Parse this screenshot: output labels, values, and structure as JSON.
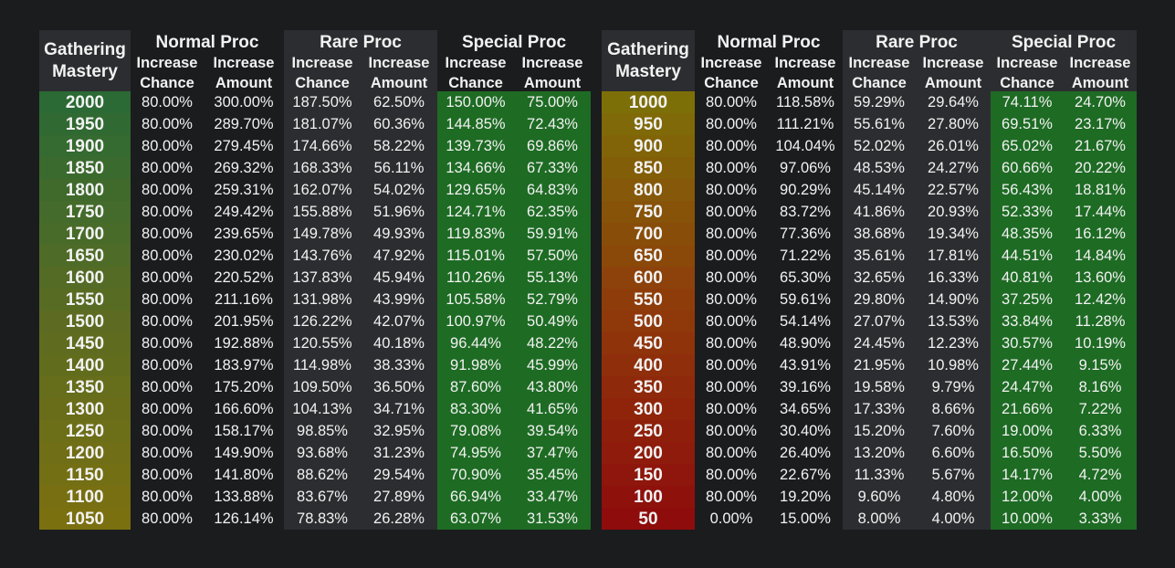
{
  "headers": {
    "mastery_line1": "Gathering",
    "mastery_line2": "Mastery",
    "normal_proc": "Normal Proc",
    "rare_proc": "Rare Proc",
    "special_proc": "Special Proc",
    "sub_chance_1": "Increase",
    "sub_chance_2": "Chance",
    "sub_amount_1": "Increase",
    "sub_amount_2": "Amount"
  },
  "colors": {
    "background": "#1b1c1e",
    "header_shade": "#2c2d30",
    "rare_column": "#2c2d30",
    "special_column": "#1e6b24",
    "left_mastery_gradient": [
      "#2b6a34",
      "#7a7010"
    ],
    "right_mastery_gradient": [
      "#7d6f08",
      "#8e0c0c"
    ]
  },
  "left_table": {
    "rows": [
      [
        "2000",
        "80.00%",
        "300.00%",
        "187.50%",
        "62.50%",
        "150.00%",
        "75.00%"
      ],
      [
        "1950",
        "80.00%",
        "289.70%",
        "181.07%",
        "60.36%",
        "144.85%",
        "72.43%"
      ],
      [
        "1900",
        "80.00%",
        "279.45%",
        "174.66%",
        "58.22%",
        "139.73%",
        "69.86%"
      ],
      [
        "1850",
        "80.00%",
        "269.32%",
        "168.33%",
        "56.11%",
        "134.66%",
        "67.33%"
      ],
      [
        "1800",
        "80.00%",
        "259.31%",
        "162.07%",
        "54.02%",
        "129.65%",
        "64.83%"
      ],
      [
        "1750",
        "80.00%",
        "249.42%",
        "155.88%",
        "51.96%",
        "124.71%",
        "62.35%"
      ],
      [
        "1700",
        "80.00%",
        "239.65%",
        "149.78%",
        "49.93%",
        "119.83%",
        "59.91%"
      ],
      [
        "1650",
        "80.00%",
        "230.02%",
        "143.76%",
        "47.92%",
        "115.01%",
        "57.50%"
      ],
      [
        "1600",
        "80.00%",
        "220.52%",
        "137.83%",
        "45.94%",
        "110.26%",
        "55.13%"
      ],
      [
        "1550",
        "80.00%",
        "211.16%",
        "131.98%",
        "43.99%",
        "105.58%",
        "52.79%"
      ],
      [
        "1500",
        "80.00%",
        "201.95%",
        "126.22%",
        "42.07%",
        "100.97%",
        "50.49%"
      ],
      [
        "1450",
        "80.00%",
        "192.88%",
        "120.55%",
        "40.18%",
        "96.44%",
        "48.22%"
      ],
      [
        "1400",
        "80.00%",
        "183.97%",
        "114.98%",
        "38.33%",
        "91.98%",
        "45.99%"
      ],
      [
        "1350",
        "80.00%",
        "175.20%",
        "109.50%",
        "36.50%",
        "87.60%",
        "43.80%"
      ],
      [
        "1300",
        "80.00%",
        "166.60%",
        "104.13%",
        "34.71%",
        "83.30%",
        "41.65%"
      ],
      [
        "1250",
        "80.00%",
        "158.17%",
        "98.85%",
        "32.95%",
        "79.08%",
        "39.54%"
      ],
      [
        "1200",
        "80.00%",
        "149.90%",
        "93.68%",
        "31.23%",
        "74.95%",
        "37.47%"
      ],
      [
        "1150",
        "80.00%",
        "141.80%",
        "88.62%",
        "29.54%",
        "70.90%",
        "35.45%"
      ],
      [
        "1100",
        "80.00%",
        "133.88%",
        "83.67%",
        "27.89%",
        "66.94%",
        "33.47%"
      ],
      [
        "1050",
        "80.00%",
        "126.14%",
        "78.83%",
        "26.28%",
        "63.07%",
        "31.53%"
      ]
    ]
  },
  "right_table": {
    "rows": [
      [
        "1000",
        "80.00%",
        "118.58%",
        "59.29%",
        "29.64%",
        "74.11%",
        "24.70%"
      ],
      [
        "950",
        "80.00%",
        "111.21%",
        "55.61%",
        "27.80%",
        "69.51%",
        "23.17%"
      ],
      [
        "900",
        "80.00%",
        "104.04%",
        "52.02%",
        "26.01%",
        "65.02%",
        "21.67%"
      ],
      [
        "850",
        "80.00%",
        "97.06%",
        "48.53%",
        "24.27%",
        "60.66%",
        "20.22%"
      ],
      [
        "800",
        "80.00%",
        "90.29%",
        "45.14%",
        "22.57%",
        "56.43%",
        "18.81%"
      ],
      [
        "750",
        "80.00%",
        "83.72%",
        "41.86%",
        "20.93%",
        "52.33%",
        "17.44%"
      ],
      [
        "700",
        "80.00%",
        "77.36%",
        "38.68%",
        "19.34%",
        "48.35%",
        "16.12%"
      ],
      [
        "650",
        "80.00%",
        "71.22%",
        "35.61%",
        "17.81%",
        "44.51%",
        "14.84%"
      ],
      [
        "600",
        "80.00%",
        "65.30%",
        "32.65%",
        "16.33%",
        "40.81%",
        "13.60%"
      ],
      [
        "550",
        "80.00%",
        "59.61%",
        "29.80%",
        "14.90%",
        "37.25%",
        "12.42%"
      ],
      [
        "500",
        "80.00%",
        "54.14%",
        "27.07%",
        "13.53%",
        "33.84%",
        "11.28%"
      ],
      [
        "450",
        "80.00%",
        "48.90%",
        "24.45%",
        "12.23%",
        "30.57%",
        "10.19%"
      ],
      [
        "400",
        "80.00%",
        "43.91%",
        "21.95%",
        "10.98%",
        "27.44%",
        "9.15%"
      ],
      [
        "350",
        "80.00%",
        "39.16%",
        "19.58%",
        "9.79%",
        "24.47%",
        "8.16%"
      ],
      [
        "300",
        "80.00%",
        "34.65%",
        "17.33%",
        "8.66%",
        "21.66%",
        "7.22%"
      ],
      [
        "250",
        "80.00%",
        "30.40%",
        "15.20%",
        "7.60%",
        "19.00%",
        "6.33%"
      ],
      [
        "200",
        "80.00%",
        "26.40%",
        "13.20%",
        "6.60%",
        "16.50%",
        "5.50%"
      ],
      [
        "150",
        "80.00%",
        "22.67%",
        "11.33%",
        "5.67%",
        "14.17%",
        "4.72%"
      ],
      [
        "100",
        "80.00%",
        "19.20%",
        "9.60%",
        "4.80%",
        "12.00%",
        "4.00%"
      ],
      [
        "50",
        "0.00%",
        "15.00%",
        "8.00%",
        "4.00%",
        "10.00%",
        "3.33%"
      ]
    ]
  }
}
